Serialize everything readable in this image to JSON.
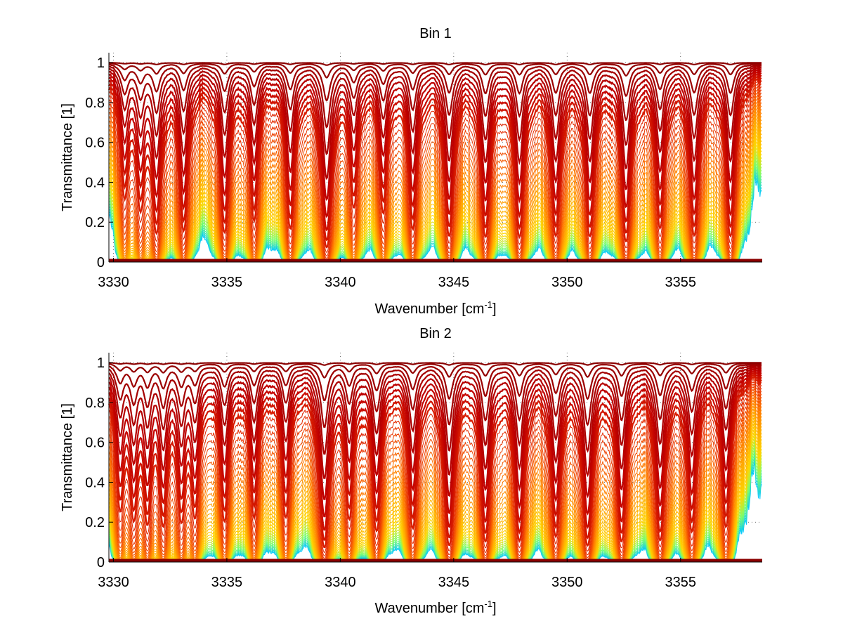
{
  "chart_data": [
    {
      "type": "line",
      "title": "Bin 1",
      "xlabel": "Wavenumber [cm",
      "xlabel_superscript": "-1",
      "xlabel_suffix": "]",
      "ylabel": "Transmittance [1]",
      "xlim": [
        3329.8,
        3358.6
      ],
      "ylim": [
        0,
        1.05
      ],
      "xticks": [
        3330,
        3335,
        3340,
        3345,
        3350,
        3355
      ],
      "xtick_labels": [
        "3330",
        "3335",
        "3340",
        "3345",
        "3350",
        "3355"
      ],
      "yticks": [
        0,
        0.2,
        0.4,
        0.6,
        0.8,
        1
      ],
      "ytick_labels": [
        "0",
        "0.2",
        "0.4",
        "0.6",
        "0.8",
        "1"
      ],
      "grid": "dotted",
      "legend": "none",
      "curve_count": 45,
      "colormap": [
        "#8b0000",
        "#c00000",
        "#e83000",
        "#ff7a00",
        "#ffb000",
        "#ffd700",
        "#7dff6a",
        "#00c8ff"
      ],
      "absorption_lines": [
        {
          "x": 3330.5,
          "min": 0.3
        },
        {
          "x": 3331.2,
          "min": 0.25
        },
        {
          "x": 3331.9,
          "min": 0.12
        },
        {
          "x": 3333.1,
          "min": 0.13
        },
        {
          "x": 3334.9,
          "min": 0.12
        },
        {
          "x": 3336.2,
          "min": 0.18
        },
        {
          "x": 3337.8,
          "min": 0.14
        },
        {
          "x": 3339.4,
          "min": 0.05
        },
        {
          "x": 3340.6,
          "min": 0.25
        },
        {
          "x": 3341.9,
          "min": 0.22
        },
        {
          "x": 3343.2,
          "min": 0.14
        },
        {
          "x": 3344.8,
          "min": 0.1
        },
        {
          "x": 3346.4,
          "min": 0.1
        },
        {
          "x": 3347.9,
          "min": 0.1
        },
        {
          "x": 3349.5,
          "min": 0.1
        },
        {
          "x": 3351.0,
          "min": 0.1
        },
        {
          "x": 3352.6,
          "min": 0.08
        },
        {
          "x": 3354.1,
          "min": 0.14
        },
        {
          "x": 3355.6,
          "min": 0.1
        },
        {
          "x": 3357.2,
          "min": 0.1
        }
      ]
    },
    {
      "type": "line",
      "title": "Bin 2",
      "xlabel": "Wavenumber [cm",
      "xlabel_superscript": "-1",
      "xlabel_suffix": "]",
      "ylabel": "Transmittance [1]",
      "xlim": [
        3329.8,
        3358.6
      ],
      "ylim": [
        0,
        1.05
      ],
      "xticks": [
        3330,
        3335,
        3340,
        3345,
        3350,
        3355
      ],
      "xtick_labels": [
        "3330",
        "3335",
        "3340",
        "3345",
        "3350",
        "3355"
      ],
      "yticks": [
        0,
        0.2,
        0.4,
        0.6,
        0.8,
        1
      ],
      "ytick_labels": [
        "0",
        "0.2",
        "0.4",
        "0.6",
        "0.8",
        "1"
      ],
      "grid": "dotted",
      "legend": "none",
      "curve_count": 45,
      "colormap": [
        "#8b0000",
        "#c00000",
        "#e83000",
        "#ff7a00",
        "#ffb000",
        "#ffd700",
        "#7dff6a",
        "#00c8ff"
      ],
      "absorption_lines": [
        {
          "x": 3330.3,
          "min": 0.25
        },
        {
          "x": 3330.9,
          "min": 0.22
        },
        {
          "x": 3331.5,
          "min": 0.2
        },
        {
          "x": 3332.2,
          "min": 0.18
        },
        {
          "x": 3333.0,
          "min": 0.2
        },
        {
          "x": 3333.6,
          "min": 0.22
        },
        {
          "x": 3334.9,
          "min": 0.18
        },
        {
          "x": 3336.2,
          "min": 0.2
        },
        {
          "x": 3337.6,
          "min": 0.2
        },
        {
          "x": 3339.3,
          "min": 0.05
        },
        {
          "x": 3340.4,
          "min": 0.2
        },
        {
          "x": 3341.6,
          "min": 0.13
        },
        {
          "x": 3343.2,
          "min": 0.14
        },
        {
          "x": 3344.8,
          "min": 0.06
        },
        {
          "x": 3346.4,
          "min": 0.08
        },
        {
          "x": 3347.9,
          "min": 0.08
        },
        {
          "x": 3349.5,
          "min": 0.1
        },
        {
          "x": 3350.9,
          "min": 0.06
        },
        {
          "x": 3352.4,
          "min": 0.08
        },
        {
          "x": 3354.1,
          "min": 0.08
        },
        {
          "x": 3355.5,
          "min": 0.12
        },
        {
          "x": 3357.0,
          "min": 0.14
        }
      ]
    }
  ]
}
